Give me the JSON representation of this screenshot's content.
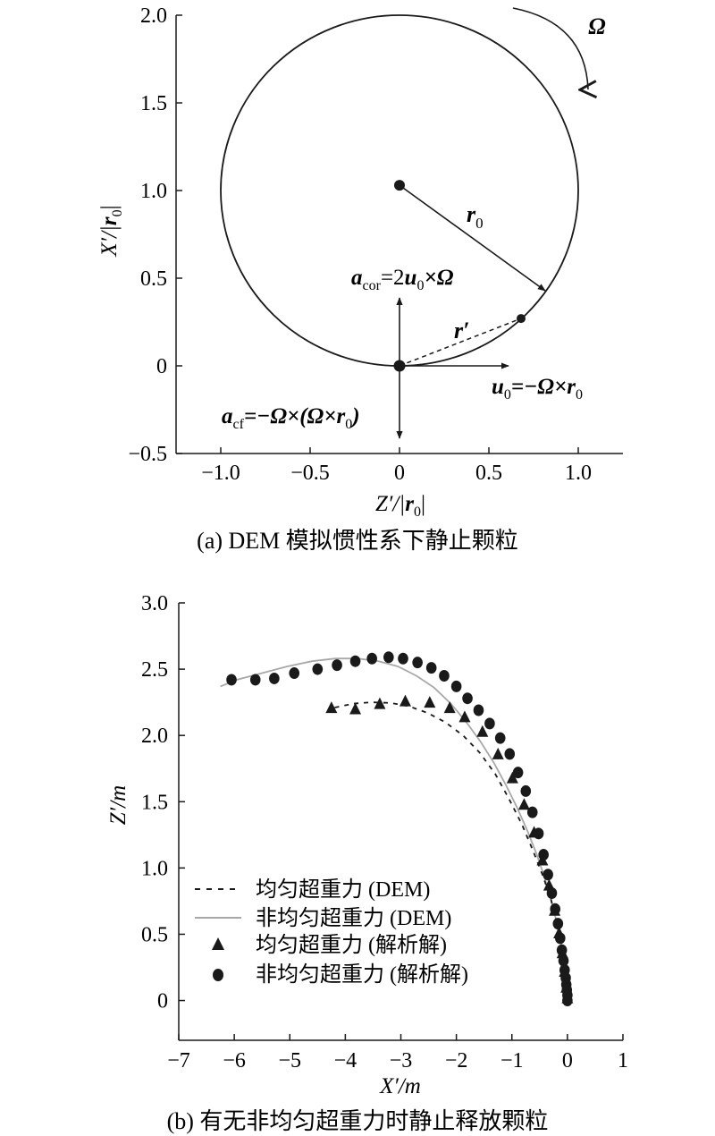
{
  "chart_data": [
    {
      "type": "diagram",
      "caption": "(a) DEM 模拟惯性系下静止颗粒",
      "xlim": [
        -1.25,
        1.25
      ],
      "ylim": [
        -0.5,
        2.0
      ],
      "xticks": [
        "−1.0",
        "−0.5",
        "0",
        "0.5",
        "1.0"
      ],
      "xtick_values": [
        -1.0,
        -0.5,
        0,
        0.5,
        1.0
      ],
      "yticks": [
        "−0.5",
        "0",
        "0.5",
        "1.0",
        "1.5",
        "2.0"
      ],
      "ytick_values": [
        -0.5,
        0,
        0.5,
        1.0,
        1.5,
        2.0
      ],
      "xlabel": {
        "main": "Z′/|",
        "bold": "r",
        "sub": "0",
        "tail": "|"
      },
      "ylabel": {
        "main": "X′/|",
        "bold": "r",
        "sub": "0",
        "tail": "|"
      },
      "circle": {
        "cx": 0,
        "cy": 1.0,
        "r": 1.0
      },
      "points": [
        {
          "name": "center",
          "x": 0,
          "y": 1.03
        },
        {
          "name": "particle",
          "x": 0,
          "y": 0
        },
        {
          "name": "rim-point",
          "x": 0.68,
          "y": 0.27
        }
      ],
      "labels": {
        "omega": "Ω",
        "r0": {
          "main": "r",
          "sub": "0"
        },
        "rprime": "r′",
        "acor": {
          "main": "a",
          "sub": "cor",
          "rest": "=2",
          "bold2": "u",
          "sub2": "0",
          "tail": "×Ω"
        },
        "u0": {
          "main": "u",
          "sub": "0",
          "rest": "=−Ω×",
          "bold2": "r",
          "sub2": "0"
        },
        "acf": {
          "main": "a",
          "sub": "cf",
          "rest": "=−Ω×(Ω×",
          "bold2": "r",
          "sub2": "0",
          "tail": ")"
        }
      }
    },
    {
      "type": "scatter",
      "caption": "(b) 有无非均匀超重力时静止释放颗粒",
      "xlabel": "X′/m",
      "ylabel": "Z′/m",
      "xlim": [
        -7,
        1
      ],
      "ylim": [
        -0.3,
        3.0
      ],
      "xticks": [
        "−7",
        "−6",
        "−5",
        "−4",
        "−3",
        "−2",
        "−1",
        "0",
        "1"
      ],
      "xtick_values": [
        -7,
        -6,
        -5,
        -4,
        -3,
        -2,
        -1,
        0,
        1
      ],
      "yticks": [
        "0",
        "0.5",
        "1.0",
        "1.5",
        "2.0",
        "2.5",
        "3.0"
      ],
      "ytick_values": [
        0,
        0.5,
        1.0,
        1.5,
        2.0,
        2.5,
        3.0
      ],
      "series": [
        {
          "name": "均匀超重力 (DEM)",
          "style": "dashed",
          "x": [
            0,
            -0.02,
            -0.06,
            -0.12,
            -0.2,
            -0.3,
            -0.45,
            -0.62,
            -0.82,
            -1.05,
            -1.3,
            -1.58,
            -1.88,
            -2.2,
            -2.52,
            -2.85,
            -3.18,
            -3.52,
            -3.85,
            -4.2
          ],
          "y": [
            0,
            0.15,
            0.3,
            0.45,
            0.6,
            0.77,
            0.95,
            1.13,
            1.33,
            1.52,
            1.71,
            1.87,
            2.0,
            2.1,
            2.17,
            2.22,
            2.245,
            2.25,
            2.24,
            2.21
          ]
        },
        {
          "name": "非均匀超重力 (DEM)",
          "style": "solid",
          "x": [
            0,
            -0.02,
            -0.06,
            -0.12,
            -0.2,
            -0.3,
            -0.42,
            -0.56,
            -0.72,
            -0.9,
            -1.1,
            -1.32,
            -1.56,
            -1.82,
            -2.1,
            -2.4,
            -2.72,
            -3.05,
            -3.4,
            -3.78,
            -4.18,
            -4.6,
            -5.05,
            -5.5,
            -5.95,
            -6.25
          ],
          "y": [
            0,
            0.15,
            0.3,
            0.45,
            0.6,
            0.77,
            0.94,
            1.11,
            1.28,
            1.45,
            1.62,
            1.79,
            1.95,
            2.1,
            2.24,
            2.36,
            2.45,
            2.52,
            2.56,
            2.58,
            2.58,
            2.56,
            2.52,
            2.47,
            2.42,
            2.37
          ]
        },
        {
          "name": "均匀超重力 (解析解)",
          "style": "triangle",
          "x": [
            0,
            -0.02,
            -0.05,
            -0.09,
            -0.15,
            -0.23,
            -0.33,
            -0.45,
            -0.6,
            -0.78,
            -0.99,
            -1.25,
            -1.53,
            -1.85,
            -2.12,
            -2.48,
            -2.92,
            -3.38,
            -3.82,
            -4.25
          ],
          "y": [
            0.02,
            0.1,
            0.22,
            0.36,
            0.51,
            0.68,
            0.87,
            1.06,
            1.27,
            1.48,
            1.68,
            1.86,
            2.03,
            2.14,
            2.21,
            2.25,
            2.26,
            2.24,
            2.2,
            2.21
          ]
        },
        {
          "name": "非均匀超重力 (解析解)",
          "style": "circle",
          "x": [
            0,
            0,
            -0.01,
            -0.02,
            -0.03,
            -0.05,
            -0.07,
            -0.1,
            -0.13,
            -0.17,
            -0.22,
            -0.28,
            -0.35,
            -0.43,
            -0.52,
            -0.63,
            -0.75,
            -0.89,
            -1.04,
            -1.21,
            -1.4,
            -1.6,
            -1.8,
            -2.0,
            -2.22,
            -2.45,
            -2.7,
            -2.96,
            -3.22,
            -3.52,
            -3.82,
            -4.15,
            -4.5,
            -4.92,
            -5.28,
            -5.62,
            -6.05
          ],
          "y": [
            0.0,
            0.04,
            0.08,
            0.12,
            0.17,
            0.23,
            0.3,
            0.38,
            0.47,
            0.58,
            0.69,
            0.81,
            0.95,
            1.1,
            1.26,
            1.42,
            1.58,
            1.72,
            1.86,
            1.98,
            2.09,
            2.19,
            2.28,
            2.37,
            2.45,
            2.51,
            2.55,
            2.58,
            2.59,
            2.58,
            2.56,
            2.53,
            2.5,
            2.47,
            2.43,
            2.42,
            2.42
          ]
        }
      ],
      "legend": "lower-left"
    }
  ]
}
